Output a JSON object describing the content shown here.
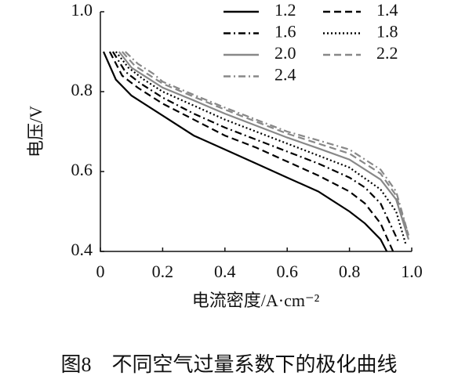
{
  "chart_data": {
    "type": "line",
    "xlabel": "电流密度/A·cm⁻²",
    "ylabel": "电压/V",
    "caption": "图8　不同空气过量系数下的极化曲线",
    "xlim": [
      0,
      1
    ],
    "ylim": [
      0.4,
      1
    ],
    "xticks": [
      0,
      0.2,
      0.4,
      0.6,
      0.8,
      {
        "value": 1,
        "label": "1.0"
      }
    ],
    "yticks": [
      0.4,
      0.6,
      0.8,
      {
        "value": 1,
        "label": "1.0"
      }
    ],
    "grid": false,
    "legend": "top-right",
    "series": [
      {
        "name": "1.2",
        "color": "#000000",
        "dash": "none",
        "x": [
          0.01,
          0.05,
          0.1,
          0.2,
          0.3,
          0.4,
          0.5,
          0.6,
          0.7,
          0.8,
          0.85,
          0.9,
          0.92
        ],
        "values": [
          0.9,
          0.83,
          0.79,
          0.74,
          0.69,
          0.655,
          0.62,
          0.585,
          0.55,
          0.5,
          0.47,
          0.43,
          0.4
        ]
      },
      {
        "name": "1.4",
        "color": "#000000",
        "dash": "9,5",
        "x": [
          0.03,
          0.07,
          0.12,
          0.2,
          0.3,
          0.4,
          0.5,
          0.6,
          0.7,
          0.8,
          0.85,
          0.9,
          0.94
        ],
        "values": [
          0.9,
          0.84,
          0.81,
          0.77,
          0.73,
          0.69,
          0.66,
          0.625,
          0.59,
          0.55,
          0.52,
          0.47,
          0.4
        ]
      },
      {
        "name": "1.6",
        "color": "#000000",
        "dash": "9,4,2,4",
        "x": [
          0.04,
          0.08,
          0.13,
          0.2,
          0.3,
          0.4,
          0.5,
          0.6,
          0.7,
          0.8,
          0.85,
          0.9,
          0.96
        ],
        "values": [
          0.9,
          0.85,
          0.82,
          0.785,
          0.745,
          0.71,
          0.68,
          0.65,
          0.62,
          0.585,
          0.56,
          0.52,
          0.42
        ]
      },
      {
        "name": "1.8",
        "color": "#000000",
        "dash": "2,3",
        "x": [
          0.05,
          0.09,
          0.14,
          0.2,
          0.3,
          0.4,
          0.5,
          0.6,
          0.7,
          0.8,
          0.9,
          0.95,
          0.98
        ],
        "values": [
          0.9,
          0.86,
          0.83,
          0.8,
          0.765,
          0.73,
          0.7,
          0.67,
          0.64,
          0.61,
          0.555,
          0.5,
          0.42
        ]
      },
      {
        "name": "2.0",
        "color": "#888888",
        "dash": "none",
        "x": [
          0.06,
          0.1,
          0.15,
          0.2,
          0.3,
          0.4,
          0.5,
          0.6,
          0.7,
          0.8,
          0.9,
          0.95,
          0.99
        ],
        "values": [
          0.9,
          0.86,
          0.835,
          0.81,
          0.778,
          0.745,
          0.715,
          0.685,
          0.658,
          0.63,
          0.58,
          0.53,
          0.43
        ]
      },
      {
        "name": "2.2",
        "color": "#888888",
        "dash": "9,5",
        "x": [
          0.07,
          0.11,
          0.16,
          0.2,
          0.3,
          0.4,
          0.5,
          0.6,
          0.7,
          0.8,
          0.9,
          0.95,
          0.99
        ],
        "values": [
          0.9,
          0.865,
          0.84,
          0.82,
          0.787,
          0.755,
          0.725,
          0.695,
          0.67,
          0.645,
          0.595,
          0.54,
          0.44
        ]
      },
      {
        "name": "2.4",
        "color": "#888888",
        "dash": "9,4,2,4",
        "x": [
          0.08,
          0.12,
          0.17,
          0.2,
          0.3,
          0.4,
          0.5,
          0.6,
          0.7,
          0.8,
          0.9,
          0.95,
          0.99
        ],
        "values": [
          0.9,
          0.87,
          0.845,
          0.825,
          0.792,
          0.76,
          0.73,
          0.7,
          0.678,
          0.655,
          0.605,
          0.55,
          0.44
        ]
      }
    ]
  }
}
